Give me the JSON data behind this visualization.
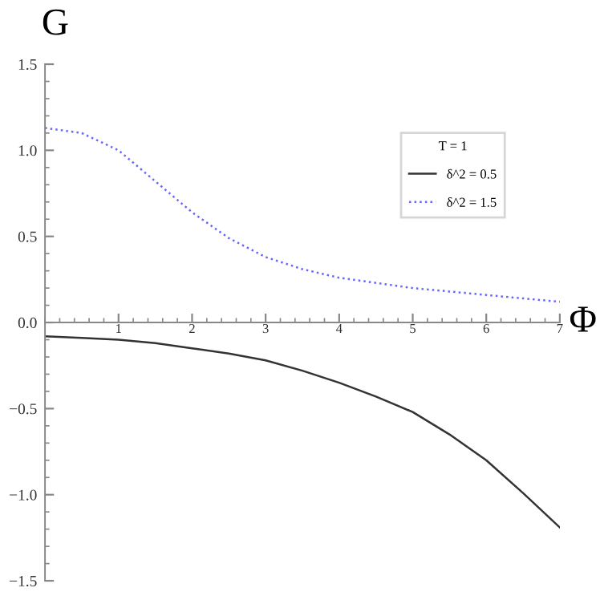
{
  "chart_data": {
    "type": "line",
    "xlabel": "Φ",
    "ylabel": "G",
    "legend_title": "T = 1",
    "legend": "top right",
    "grid": false,
    "xlim": [
      0,
      7
    ],
    "ylim": [
      -1.5,
      1.5
    ],
    "xticks": [
      1,
      2,
      3,
      4,
      5,
      6,
      7
    ],
    "yticks": [
      {
        "value": -1.5,
        "label": "−1.5"
      },
      {
        "value": -1.0,
        "label": "−1.0"
      },
      {
        "value": -0.5,
        "label": "−0.5"
      },
      {
        "value": 0.0,
        "label": "0.0"
      },
      {
        "value": 0.5,
        "label": "0.5"
      },
      {
        "value": 1.0,
        "label": "1.0"
      },
      {
        "value": 1.5,
        "label": "1.5"
      }
    ],
    "x": [
      0,
      0.5,
      1,
      1.5,
      2,
      2.5,
      3,
      3.5,
      4,
      4.5,
      5,
      5.5,
      6,
      6.5,
      7
    ],
    "series": [
      {
        "name": "δ^2 = 0.5",
        "color": "#333333",
        "line_style": "solid",
        "values": [
          -0.08,
          -0.09,
          -0.1,
          -0.12,
          -0.15,
          -0.18,
          -0.22,
          -0.28,
          -0.35,
          -0.43,
          -0.52,
          -0.65,
          -0.8,
          -0.99,
          -1.19
        ]
      },
      {
        "name": "δ^2 = 1.5",
        "color": "#6666ff",
        "line_style": "dotted",
        "values": [
          1.13,
          1.1,
          1.0,
          0.82,
          0.64,
          0.49,
          0.38,
          0.31,
          0.26,
          0.23,
          0.2,
          0.18,
          0.16,
          0.14,
          0.12
        ]
      }
    ]
  }
}
